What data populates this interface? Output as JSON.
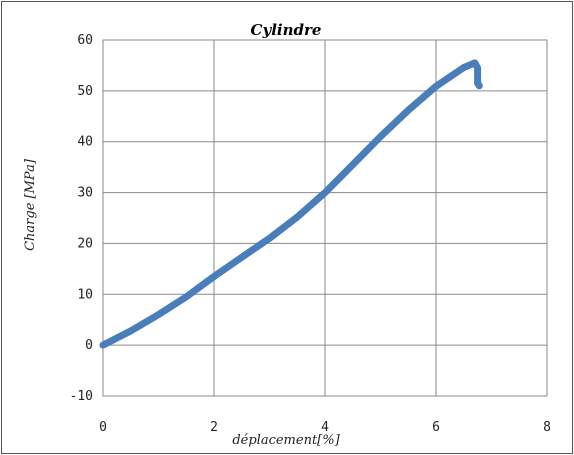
{
  "chart_data": {
    "type": "line",
    "title": "Cylindre",
    "xlabel": "déplacement[%]",
    "ylabel": "Charge [MPa]",
    "xlim": [
      0,
      8
    ],
    "ylim": [
      -10,
      60
    ],
    "x_ticks": [
      0,
      2,
      4,
      6,
      8
    ],
    "y_ticks": [
      -10,
      0,
      10,
      20,
      30,
      40,
      50,
      60
    ],
    "x_tick_labels": [
      "0",
      "2",
      "4",
      "6",
      "8"
    ],
    "y_tick_labels": [
      "-10",
      "0",
      "10",
      "20",
      "30",
      "40",
      "50",
      "60"
    ],
    "grid": true,
    "legend": "none",
    "series": [
      {
        "color": "#4a7ebb",
        "x": [
          0,
          0.5,
          1.0,
          1.5,
          2.0,
          2.5,
          3.0,
          3.5,
          4.0,
          4.5,
          5.0,
          5.5,
          6.0,
          6.5,
          6.7,
          6.75,
          6.75,
          6.78
        ],
        "y": [
          0,
          2.8,
          6.0,
          9.5,
          13.5,
          17.3,
          21.0,
          25.2,
          30.0,
          35.5,
          41.0,
          46.2,
          50.9,
          54.6,
          55.5,
          54.5,
          51.5,
          51.0
        ]
      }
    ]
  }
}
